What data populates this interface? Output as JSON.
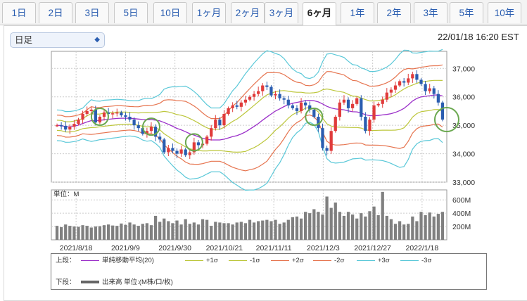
{
  "tabs": [
    {
      "label": "1日",
      "active": false
    },
    {
      "label": "2日",
      "active": false
    },
    {
      "label": "3日",
      "active": false
    },
    {
      "label": "5日",
      "active": false
    },
    {
      "label": "10日",
      "active": false
    },
    {
      "label": "1ヶ月",
      "active": false
    },
    {
      "label": "2ヶ月",
      "active": false
    },
    {
      "label": "3ヶ月",
      "active": false
    },
    {
      "label": "6ヶ月",
      "active": true
    },
    {
      "label": "1年",
      "active": false
    },
    {
      "label": "2年",
      "active": false
    },
    {
      "label": "3年",
      "active": false
    },
    {
      "label": "5年",
      "active": false
    },
    {
      "label": "10年",
      "active": false
    }
  ],
  "period_select": {
    "value": "日足"
  },
  "timestamp": "22/01/18 16:20 EST",
  "colors": {
    "up": "#e03b3b",
    "down": "#2a5db0",
    "sma": "#9b2fc9",
    "band1": "#bcc63a",
    "band2": "#e6744f",
    "band3": "#5ac8d8",
    "volume": "#808080",
    "marker": "#6aa84f",
    "grid": "#cccccc"
  },
  "chart_data": [
    {
      "type": "candlestick",
      "ylim": [
        33000,
        37600
      ],
      "yticks": [
        "37,000",
        "36,000",
        "35,000",
        "34,000",
        "33,000"
      ],
      "ytick_values": [
        37000,
        36000,
        35000,
        34000,
        33000
      ],
      "x_tick_labels": [
        "2021/8/18",
        "2021/9/9",
        "2021/9/30",
        "2021/10/21",
        "2021/11/11",
        "2021/12/3",
        "2021/12/27",
        "2022/1/18"
      ],
      "closes": [
        35000,
        34980,
        34850,
        34950,
        35050,
        35200,
        35400,
        35500,
        35550,
        35100,
        35300,
        35450,
        35400,
        35420,
        35450,
        35350,
        35300,
        35200,
        35000,
        34900,
        34700,
        34800,
        34950,
        34600,
        34500,
        34050,
        34200,
        34100,
        34000,
        34150,
        33950,
        34050,
        34400,
        34300,
        34350,
        34600,
        34900,
        35200,
        35000,
        35400,
        35600,
        35700,
        35650,
        35800,
        35900,
        36000,
        36100,
        36200,
        36400,
        36350,
        36050,
        36100,
        35950,
        35900,
        35700,
        35600,
        35500,
        35800,
        35700,
        35550,
        35300,
        34900,
        34200,
        34100,
        34800,
        35300,
        35800,
        35900,
        35600,
        35750,
        35950,
        35300,
        34800,
        35200,
        35700,
        35750,
        35900,
        36150,
        36250,
        36400,
        36550,
        36500,
        36650,
        36800,
        36600,
        36450,
        36200,
        36300,
        36100,
        35800,
        35200
      ],
      "sma_label": "単純移動平均(20)",
      "bands": {
        "sd1": "+1σ",
        "sd1n": "-1σ",
        "sd2": "+2σ",
        "sd2n": "-2σ",
        "sd3": "+3σ",
        "sd3n": "-3σ"
      },
      "highlight_markers_index": [
        10,
        22,
        32,
        60,
        90
      ]
    },
    {
      "type": "bar",
      "title": "単位：M",
      "ylim": [
        0,
        750
      ],
      "yticks": [
        "600M",
        "400M",
        "200M"
      ],
      "ytick_values": [
        600,
        400,
        200
      ],
      "values": [
        210,
        190,
        230,
        210,
        200,
        195,
        220,
        210,
        185,
        200,
        205,
        220,
        230,
        215,
        210,
        245,
        225,
        260,
        230,
        210,
        240,
        250,
        220,
        360,
        270,
        320,
        280,
        250,
        290,
        230,
        310,
        240,
        260,
        230,
        310,
        300,
        210,
        270,
        260,
        250,
        250,
        230,
        260,
        270,
        250,
        300,
        260,
        280,
        290,
        300,
        280,
        300,
        240,
        260,
        300,
        340,
        350,
        320,
        420,
        400,
        460,
        420,
        380,
        650,
        480,
        560,
        420,
        360,
        420,
        380,
        320,
        400,
        350,
        430,
        500,
        370,
        720,
        360,
        310,
        240,
        280,
        230,
        240,
        350,
        280,
        420,
        370,
        410,
        350,
        390,
        420
      ]
    }
  ],
  "legend": {
    "upper_label": "上段：",
    "lower_label": "下段：",
    "volume_label": "出来高 単位:(M株/口/枚)",
    "items": [
      {
        "label": "単純移動平均(20)",
        "color": "#9b2fc9"
      },
      {
        "label": "+1σ",
        "color": "#bcc63a"
      },
      {
        "label": "-1σ",
        "color": "#bcc63a"
      },
      {
        "label": "+2σ",
        "color": "#e6744f"
      },
      {
        "label": "-2σ",
        "color": "#e6744f"
      },
      {
        "label": "+3σ",
        "color": "#5ac8d8"
      },
      {
        "label": "-3σ",
        "color": "#5ac8d8"
      }
    ]
  }
}
